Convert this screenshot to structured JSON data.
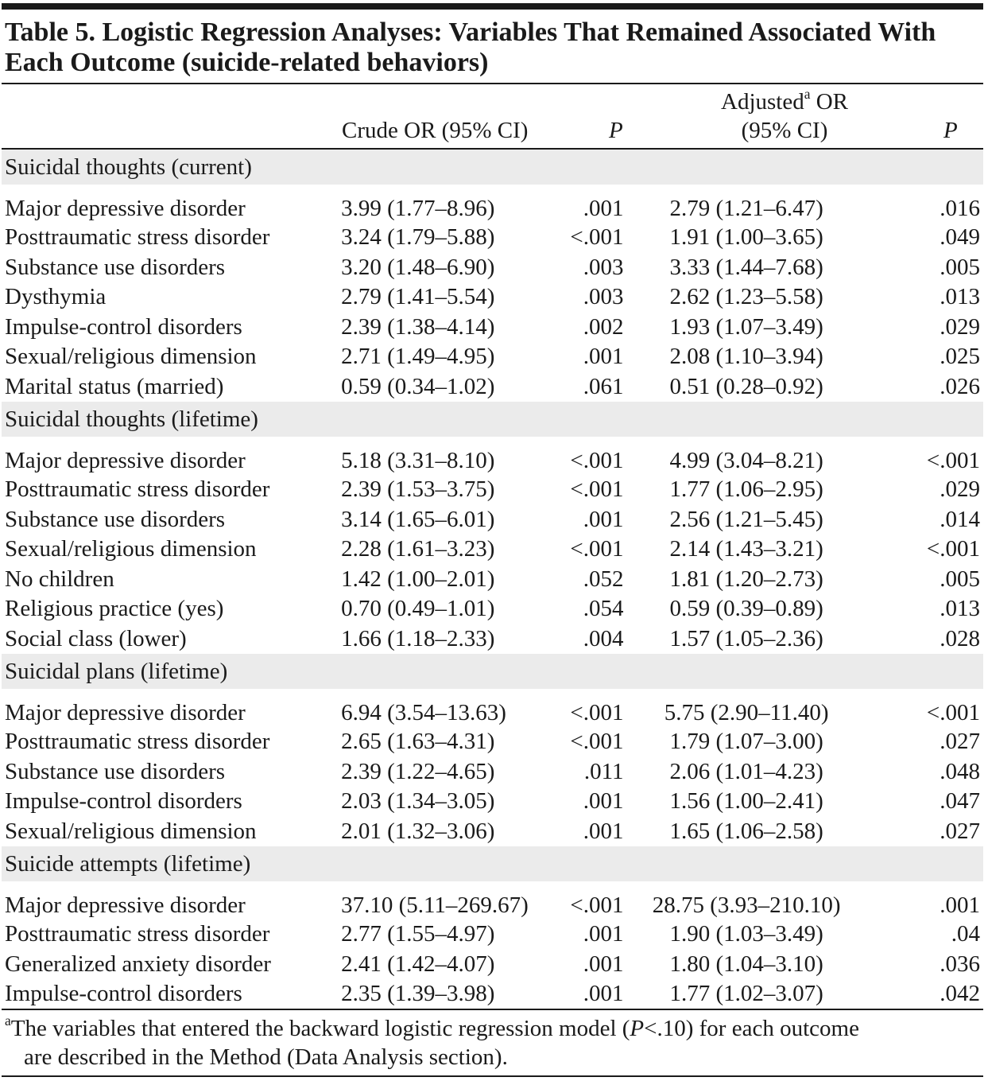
{
  "title": "Table 5. Logistic Regression Analyses: Variables That Remained Associated With Each Outcome (suicide-related behaviors)",
  "headers": {
    "crude": "Crude OR (95% CI)",
    "p": "P",
    "adjusted_line1": "Adjusted",
    "adjusted_sup": "a",
    "adjusted_or": " OR",
    "adjusted_line2": "(95% CI)",
    "p2": "P"
  },
  "sections": [
    {
      "label": "Suicidal thoughts (current)",
      "rows": [
        {
          "variable": "Major depressive disorder",
          "crude": "3.99 (1.77–8.96)",
          "p_crude": ".001",
          "adjusted": "2.79 (1.21–6.47)",
          "p_adjusted": ".016"
        },
        {
          "variable": "Posttraumatic stress disorder",
          "crude": "3.24 (1.79–5.88)",
          "p_crude": "<.001",
          "adjusted": "1.91 (1.00–3.65)",
          "p_adjusted": ".049"
        },
        {
          "variable": "Substance use disorders",
          "crude": "3.20 (1.48–6.90)",
          "p_crude": ".003",
          "adjusted": "3.33 (1.44–7.68)",
          "p_adjusted": ".005"
        },
        {
          "variable": "Dysthymia",
          "crude": "2.79 (1.41–5.54)",
          "p_crude": ".003",
          "adjusted": "2.62 (1.23–5.58)",
          "p_adjusted": ".013"
        },
        {
          "variable": "Impulse-control disorders",
          "crude": "2.39 (1.38–4.14)",
          "p_crude": ".002",
          "adjusted": "1.93 (1.07–3.49)",
          "p_adjusted": ".029"
        },
        {
          "variable": "Sexual/religious dimension",
          "crude": "2.71 (1.49–4.95)",
          "p_crude": ".001",
          "adjusted": "2.08 (1.10–3.94)",
          "p_adjusted": ".025"
        },
        {
          "variable": "Marital status (married)",
          "crude": "0.59 (0.34–1.02)",
          "p_crude": ".061",
          "adjusted": "0.51 (0.28–0.92)",
          "p_adjusted": ".026"
        }
      ]
    },
    {
      "label": "Suicidal thoughts (lifetime)",
      "rows": [
        {
          "variable": "Major depressive disorder",
          "crude": "5.18 (3.31–8.10)",
          "p_crude": "<.001",
          "adjusted": "4.99 (3.04–8.21)",
          "p_adjusted": "<.001"
        },
        {
          "variable": "Posttraumatic stress disorder",
          "crude": "2.39 (1.53–3.75)",
          "p_crude": "<.001",
          "adjusted": "1.77 (1.06–2.95)",
          "p_adjusted": ".029"
        },
        {
          "variable": "Substance use disorders",
          "crude": "3.14 (1.65–6.01)",
          "p_crude": ".001",
          "adjusted": "2.56 (1.21–5.45)",
          "p_adjusted": ".014"
        },
        {
          "variable": "Sexual/religious dimension",
          "crude": "2.28 (1.61–3.23)",
          "p_crude": "<.001",
          "adjusted": "2.14 (1.43–3.21)",
          "p_adjusted": "<.001"
        },
        {
          "variable": "No children",
          "crude": "1.42 (1.00–2.01)",
          "p_crude": ".052",
          "adjusted": "1.81 (1.20–2.73)",
          "p_adjusted": ".005"
        },
        {
          "variable": "Religious practice (yes)",
          "crude": "0.70 (0.49–1.01)",
          "p_crude": ".054",
          "adjusted": "0.59 (0.39–0.89)",
          "p_adjusted": ".013"
        },
        {
          "variable": "Social class (lower)",
          "crude": "1.66 (1.18–2.33)",
          "p_crude": ".004",
          "adjusted": "1.57 (1.05–2.36)",
          "p_adjusted": ".028"
        }
      ]
    },
    {
      "label": "Suicidal plans (lifetime)",
      "rows": [
        {
          "variable": "Major depressive disorder",
          "crude": "6.94 (3.54–13.63)",
          "p_crude": "<.001",
          "adjusted": "5.75 (2.90–11.40)",
          "p_adjusted": "<.001"
        },
        {
          "variable": "Posttraumatic stress disorder",
          "crude": "2.65 (1.63–4.31)",
          "p_crude": "<.001",
          "adjusted": "1.79 (1.07–3.00)",
          "p_adjusted": ".027"
        },
        {
          "variable": "Substance use disorders",
          "crude": "2.39 (1.22–4.65)",
          "p_crude": ".011",
          "adjusted": "2.06 (1.01–4.23)",
          "p_adjusted": ".048"
        },
        {
          "variable": "Impulse-control disorders",
          "crude": "2.03 (1.34–3.05)",
          "p_crude": ".001",
          "adjusted": "1.56 (1.00–2.41)",
          "p_adjusted": ".047"
        },
        {
          "variable": "Sexual/religious dimension",
          "crude": "2.01 (1.32–3.06)",
          "p_crude": ".001",
          "adjusted": "1.65 (1.06–2.58)",
          "p_adjusted": ".027"
        }
      ]
    },
    {
      "label": "Suicide attempts (lifetime)",
      "rows": [
        {
          "variable": "Major depressive disorder",
          "crude": "37.10 (5.11–269.67)",
          "p_crude": "<.001",
          "adjusted": "28.75 (3.93–210.10)",
          "p_adjusted": ".001"
        },
        {
          "variable": "Posttraumatic stress disorder",
          "crude": "2.77 (1.55–4.97)",
          "p_crude": ".001",
          "adjusted": "1.90 (1.03–3.49)",
          "p_adjusted": ".04"
        },
        {
          "variable": "Generalized anxiety disorder",
          "crude": "2.41 (1.42–4.07)",
          "p_crude": ".001",
          "adjusted": "1.80 (1.04–3.10)",
          "p_adjusted": ".036"
        },
        {
          "variable": "Impulse-control disorders",
          "crude": "2.35 (1.39–3.98)",
          "p_crude": ".001",
          "adjusted": "1.77 (1.02–3.07)",
          "p_adjusted": ".042"
        }
      ]
    }
  ],
  "footnote": {
    "marker": "a",
    "part1": "The variables that entered the backward logistic regression model (",
    "p_symbol": "P",
    "part2": "<.10) for each outcome",
    "line2": "are described in the Method (Data Analysis section)."
  }
}
